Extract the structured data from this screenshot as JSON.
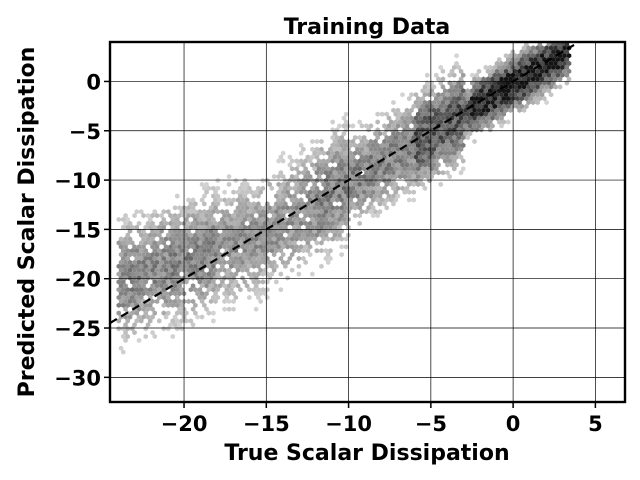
{
  "chart_data": {
    "type": "hexbin",
    "title": "Training Data",
    "xlabel": "True Scalar Dissipation",
    "ylabel": "Predicted Scalar Dissipation",
    "xlim": [
      -24.5,
      6.8
    ],
    "ylim": [
      -32.5,
      4
    ],
    "xticks": [
      -20,
      -15,
      -10,
      -5,
      0,
      5
    ],
    "yticks": [
      -30,
      -25,
      -20,
      -15,
      -10,
      -5,
      0
    ],
    "xtick_labels": [
      "−20",
      "−15",
      "−10",
      "−5",
      "0",
      "5"
    ],
    "ytick_labels": [
      "−30",
      "−25",
      "−20",
      "−15",
      "−10",
      "−5",
      "0"
    ],
    "grid": true,
    "colormap": "greys",
    "reference_line": {
      "style": "dashed",
      "color": "#000000",
      "slope": 1,
      "intercept": 0
    },
    "density_centers": [
      {
        "x": 0.5,
        "y": 0.5,
        "weight": 1.0
      },
      {
        "x": -3,
        "y": -3,
        "weight": 0.75
      },
      {
        "x": -7,
        "y": -7.5,
        "weight": 0.55
      },
      {
        "x": -11,
        "y": -11.5,
        "weight": 0.45
      },
      {
        "x": -15,
        "y": -15.5,
        "weight": 0.4
      },
      {
        "x": -20,
        "y": -18,
        "weight": 0.5
      }
    ]
  }
}
